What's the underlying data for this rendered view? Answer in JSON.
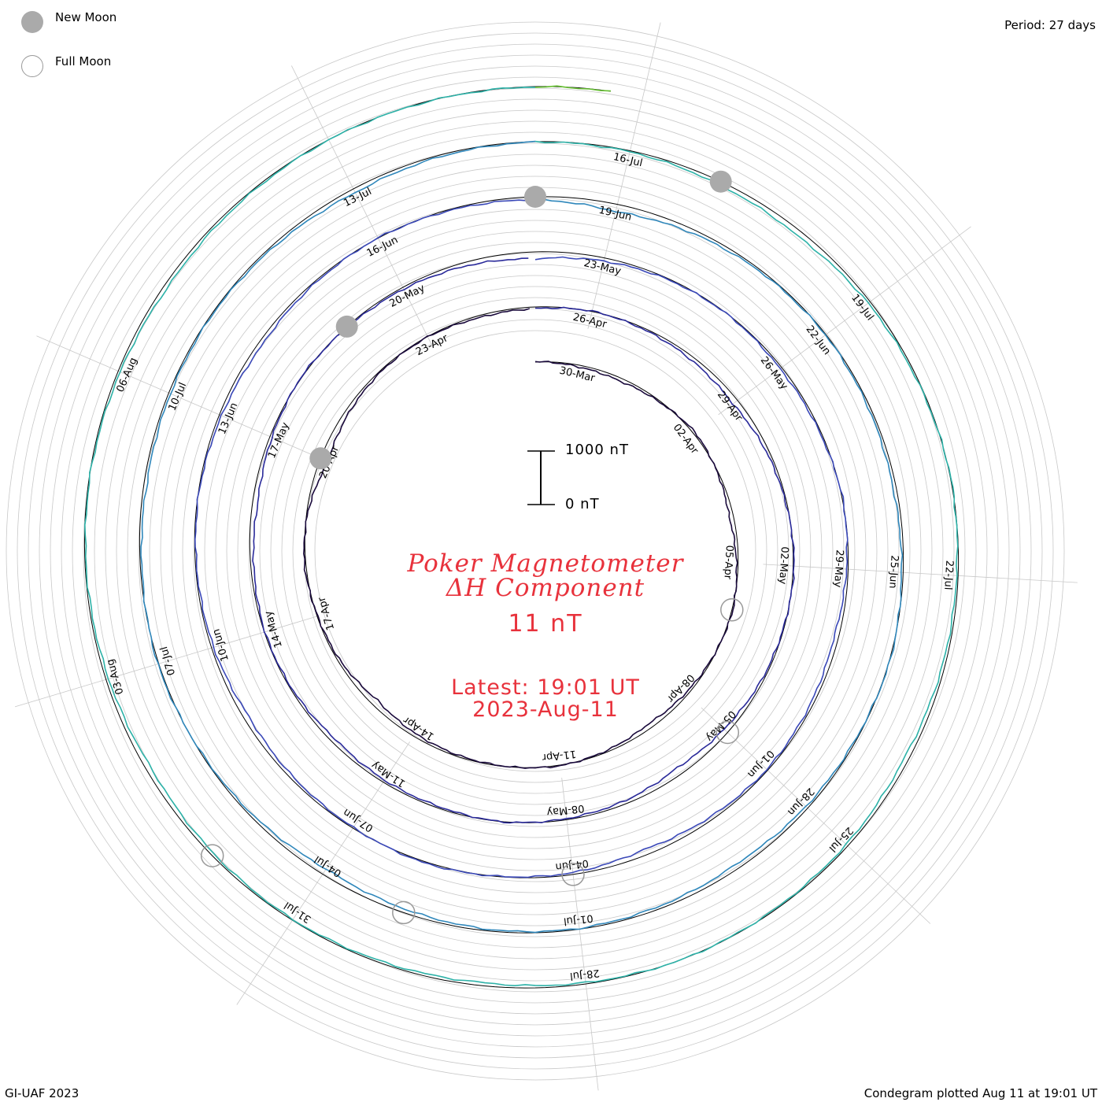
{
  "legend": {
    "new_moon_label": "New Moon",
    "full_moon_label": "Full Moon",
    "new_moon_color": "#aaaaaa",
    "full_moon_color": "#ffffff"
  },
  "period_label": "Period: 27 days",
  "title_line1": "Poker Magnetometer",
  "title_line2": "ΔH Component",
  "current_value": "11 nT",
  "latest_label": "Latest: 19:01 UT",
  "latest_date": "2023-Aug-11",
  "scale": {
    "top_label": "1000 nT",
    "bottom_label": "0 nT",
    "top_value": 1000,
    "bottom_value": 0
  },
  "footer_left": "GI-UAF 2023",
  "footer_right": "Condegram plotted Aug 11 at 19:01 UT",
  "chart_data": {
    "type": "line",
    "layout": "condegram (spiral, one turn per period)",
    "title": "Poker Magnetometer ΔH Component",
    "period_days": 27,
    "start_date": "2023-03-29",
    "end_date": "2023-08-11",
    "units": "nT",
    "scale_nT": [
      0,
      1000
    ],
    "line_colors": [
      "#1a0a3c",
      "#2a2a9a",
      "#3a48b8",
      "#2f87bb",
      "#2db2a8",
      "#66bf32",
      "#b3b31e",
      "#c8801a",
      "#c43a1a",
      "#a80f0f"
    ],
    "date_labels": [
      "30-Mar",
      "02-Apr",
      "05-Apr",
      "08-Apr",
      "11-Apr",
      "14-Apr",
      "17-Apr",
      "20-Apr",
      "23-Apr",
      "26-Apr",
      "29-Apr",
      "02-May",
      "05-May",
      "08-May",
      "11-May",
      "14-May",
      "17-May",
      "20-May",
      "23-May",
      "26-May",
      "29-May",
      "01-Jun",
      "04-Jun",
      "07-Jun",
      "10-Jun",
      "13-Jun",
      "16-Jun",
      "19-Jun",
      "22-Jun",
      "25-Jun",
      "28-Jun",
      "01-Jul",
      "04-Jul",
      "07-Jul",
      "10-Jul",
      "13-Jul",
      "16-Jul",
      "19-Jul",
      "22-Jul",
      "25-Jul",
      "28-Jul",
      "31-Jul",
      "03-Aug",
      "06-Aug"
    ],
    "new_moon_dates": [
      "2023-04-20",
      "2023-05-19",
      "2023-06-18",
      "2023-07-17"
    ],
    "full_moon_dates": [
      "2023-04-06",
      "2023-05-05",
      "2023-06-04",
      "2023-07-03",
      "2023-08-01"
    ],
    "daily_dH_nT": [
      -10,
      35,
      60,
      20,
      -40,
      15,
      80,
      30,
      -20,
      10,
      45,
      90,
      30,
      -15,
      5,
      25,
      60,
      120,
      40,
      10,
      -30,
      20,
      150,
      70,
      20,
      5,
      40,
      30,
      -10,
      25,
      65,
      110,
      50,
      15,
      -20,
      10,
      35,
      90,
      140,
      60,
      20,
      -5,
      30,
      45,
      80,
      25,
      10,
      55,
      100,
      40,
      -15,
      20,
      35,
      70,
      130,
      60,
      15,
      5,
      40,
      25,
      -10,
      30,
      85,
      45,
      20,
      60,
      110,
      35,
      5,
      -25,
      15,
      50,
      95,
      40,
      20,
      10,
      45,
      75,
      30,
      -5,
      20,
      55,
      140,
      65,
      25,
      10,
      35,
      60,
      30,
      -15,
      20,
      45,
      90,
      50,
      15,
      30,
      70,
      120,
      45,
      10,
      -20,
      25,
      55,
      35,
      15,
      40,
      80,
      30,
      5,
      20,
      65,
      100,
      45,
      20,
      -10,
      30,
      50,
      85,
      40,
      15,
      -5,
      25,
      60,
      35,
      15,
      45,
      95,
      50,
      20,
      10,
      40,
      70,
      30,
      5
    ]
  }
}
